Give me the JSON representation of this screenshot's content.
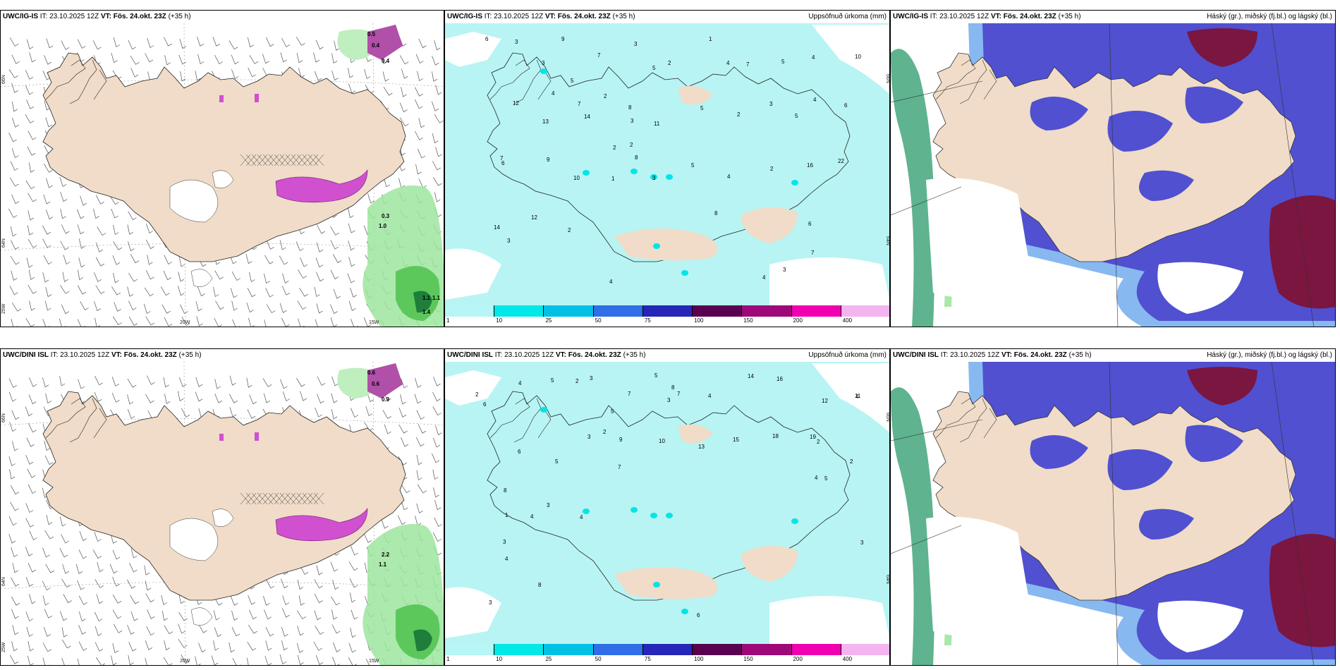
{
  "panels": [
    {
      "model": "UWC/IG-IS",
      "it_label": "IT:",
      "it": "23.10.2025 12Z",
      "vt_label": "VT: Fös. 24.okt. 23Z",
      "lead": "(+35 h)",
      "right": "",
      "kind": "wind"
    },
    {
      "model": "UWC/IG-IS",
      "it_label": "IT:",
      "it": "23.10.2025 12Z",
      "vt_label": "VT: Fös. 24.okt. 23Z",
      "lead": "(+35 h)",
      "right": "Uppsöfnuð úrkoma (mm)",
      "kind": "precip"
    },
    {
      "model": "UWC/IG-IS",
      "it_label": "IT:",
      "it": "23.10.2025 12Z",
      "vt_label": "VT: Fös. 24.okt. 23Z",
      "lead": "(+35 h)",
      "right": "Háský (gr.), miðský (fj.bl.) og lágský (bl.)",
      "kind": "cloud"
    },
    {
      "model": "UWC/DINI ISL",
      "it_label": "IT:",
      "it": "23.10.2025 12Z",
      "vt_label": "VT: Fös. 24.okt. 23Z",
      "lead": "(+35 h)",
      "right": "",
      "kind": "wind"
    },
    {
      "model": "UWC/DINI ISL",
      "it_label": "IT:",
      "it": "23.10.2025 12Z",
      "vt_label": "VT: Fös. 24.okt. 23Z",
      "lead": "(+35 h)",
      "right": "Uppsöfnuð úrkoma (mm)",
      "kind": "precip"
    },
    {
      "model": "UWC/DINI ISL",
      "it_label": "IT:",
      "it": "23.10.2025 12Z",
      "vt_label": "VT: Fös. 24.okt. 23Z",
      "lead": "(+35 h)",
      "right": "Háský (gr.), miðský (fj.bl.) og lágský (bl.)",
      "kind": "cloud"
    }
  ],
  "axis_labels": {
    "lat66": "66N",
    "lat64": "64N",
    "lat65": "65N",
    "lon25": "25W",
    "lon20": "20W",
    "lon15": "15W"
  },
  "colorbar": {
    "ticks": [
      "1",
      "10",
      "25",
      "50",
      "75",
      "100",
      "150",
      "200",
      "400"
    ],
    "colors": [
      "#b7f6f6",
      "#00e8e8",
      "#00c0e6",
      "#2f6ee6",
      "#2626b8",
      "#5a0050",
      "#9e0878",
      "#f000b0",
      "#f4b4f0"
    ]
  },
  "colors": {
    "land": "#f0dcc8",
    "precip_light": "#b8f4f4",
    "wind_precip_green": "#5cc85c",
    "snow_magenta": "#d050d0",
    "cloud_mid": "#5050d0",
    "cloud_low": "#88b8f0",
    "cloud_high": "#2a9a6a",
    "cloud_dark": "#7a1640"
  },
  "precip_numbers_top": [
    "6",
    "3",
    "9",
    "7",
    "3",
    "2",
    "1",
    "7",
    "5",
    "4",
    "10",
    "12",
    "13",
    "14",
    "8",
    "11",
    "5",
    "2",
    "3",
    "4",
    "6",
    "7",
    "9",
    "10",
    "1",
    "3",
    "5",
    "4",
    "2",
    "16",
    "22",
    "14",
    "12",
    "2"
  ],
  "precip_numbers_bottom": [
    "2",
    "4",
    "5",
    "3",
    "7",
    "8",
    "4",
    "14",
    "16",
    "12",
    "11",
    "6",
    "5",
    "3",
    "9",
    "10",
    "13",
    "15",
    "18",
    "19",
    "2",
    "1",
    "3",
    "4"
  ],
  "wind_labels_top": [
    "0.5",
    "0.4",
    "0.4",
    "0.3",
    "1.0",
    "1.1",
    "1.1",
    "1.4"
  ],
  "wind_labels_bottom": [
    "0.6",
    "0.6",
    "0.9",
    "2.2",
    "1.1"
  ]
}
